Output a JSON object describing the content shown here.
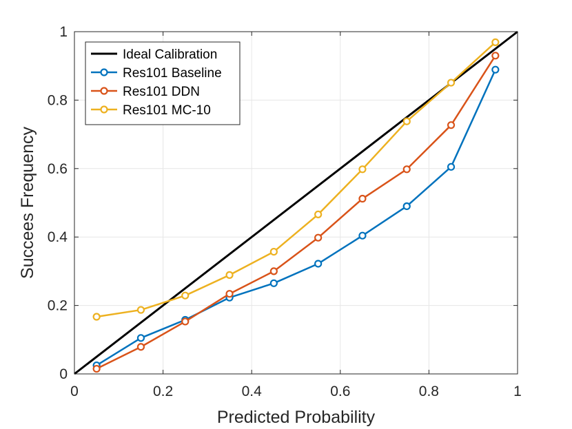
{
  "chart_data": {
    "type": "line",
    "title": "",
    "xlabel": "Predicted Probability",
    "ylabel": "Succees Frequency",
    "xlim": [
      0,
      1
    ],
    "ylim": [
      0,
      1
    ],
    "grid": true,
    "legend_location": "top-left",
    "x_ticks": [
      0,
      0.2,
      0.4,
      0.6,
      0.8,
      1
    ],
    "x_tick_labels": [
      "0",
      "0.2",
      "0.4",
      "0.6",
      "0.8",
      "1"
    ],
    "y_ticks": [
      0,
      0.2,
      0.4,
      0.6,
      0.8,
      1
    ],
    "y_tick_labels": [
      "0",
      "0.2",
      "0.4",
      "0.6",
      "0.8",
      "1"
    ],
    "series": [
      {
        "name": "Ideal Calibration",
        "color": "#000000",
        "marker": "none",
        "x": [
          0,
          1
        ],
        "y": [
          0,
          1
        ]
      },
      {
        "name": "Res101 Baseline",
        "color": "#0072BD",
        "marker": "circle",
        "x": [
          0.05,
          0.15,
          0.25,
          0.35,
          0.45,
          0.55,
          0.65,
          0.75,
          0.85,
          0.95
        ],
        "y": [
          0.025,
          0.105,
          0.158,
          0.223,
          0.265,
          0.322,
          0.404,
          0.49,
          0.605,
          0.889
        ]
      },
      {
        "name": "Res101 DDN",
        "color": "#D95319",
        "marker": "circle",
        "x": [
          0.05,
          0.15,
          0.25,
          0.35,
          0.45,
          0.55,
          0.65,
          0.75,
          0.85,
          0.95
        ],
        "y": [
          0.015,
          0.079,
          0.153,
          0.234,
          0.3,
          0.398,
          0.512,
          0.598,
          0.727,
          0.93
        ]
      },
      {
        "name": "Res101 MC-10",
        "color": "#EDB120",
        "marker": "circle",
        "x": [
          0.05,
          0.15,
          0.25,
          0.35,
          0.45,
          0.55,
          0.65,
          0.75,
          0.85,
          0.95
        ],
        "y": [
          0.167,
          0.187,
          0.229,
          0.289,
          0.357,
          0.466,
          0.598,
          0.738,
          0.851,
          0.969
        ]
      }
    ]
  }
}
